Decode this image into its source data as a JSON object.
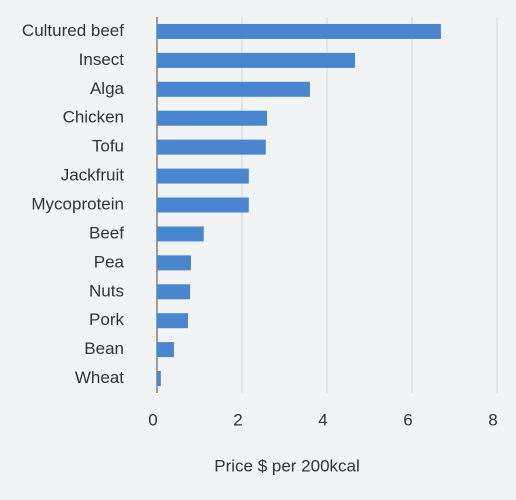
{
  "chart_data": {
    "type": "bar",
    "orientation": "horizontal",
    "x_label": "Price $ per 200kcal",
    "categories": [
      "Cultured beef",
      "Insect",
      "Alga",
      "Chicken",
      "Tofu",
      "Jackfruit",
      "Mycoprotein",
      "Beef",
      "Pea",
      "Nuts",
      "Pork",
      "Bean",
      "Wheat"
    ],
    "values": [
      6.68,
      4.66,
      3.6,
      2.59,
      2.56,
      2.16,
      2.16,
      1.1,
      0.8,
      0.78,
      0.73,
      0.4,
      0.09
    ],
    "color": "#4a86d0",
    "xlim": [
      0,
      8
    ],
    "xticks": [
      0,
      2,
      4,
      6,
      8
    ],
    "grid": true
  }
}
